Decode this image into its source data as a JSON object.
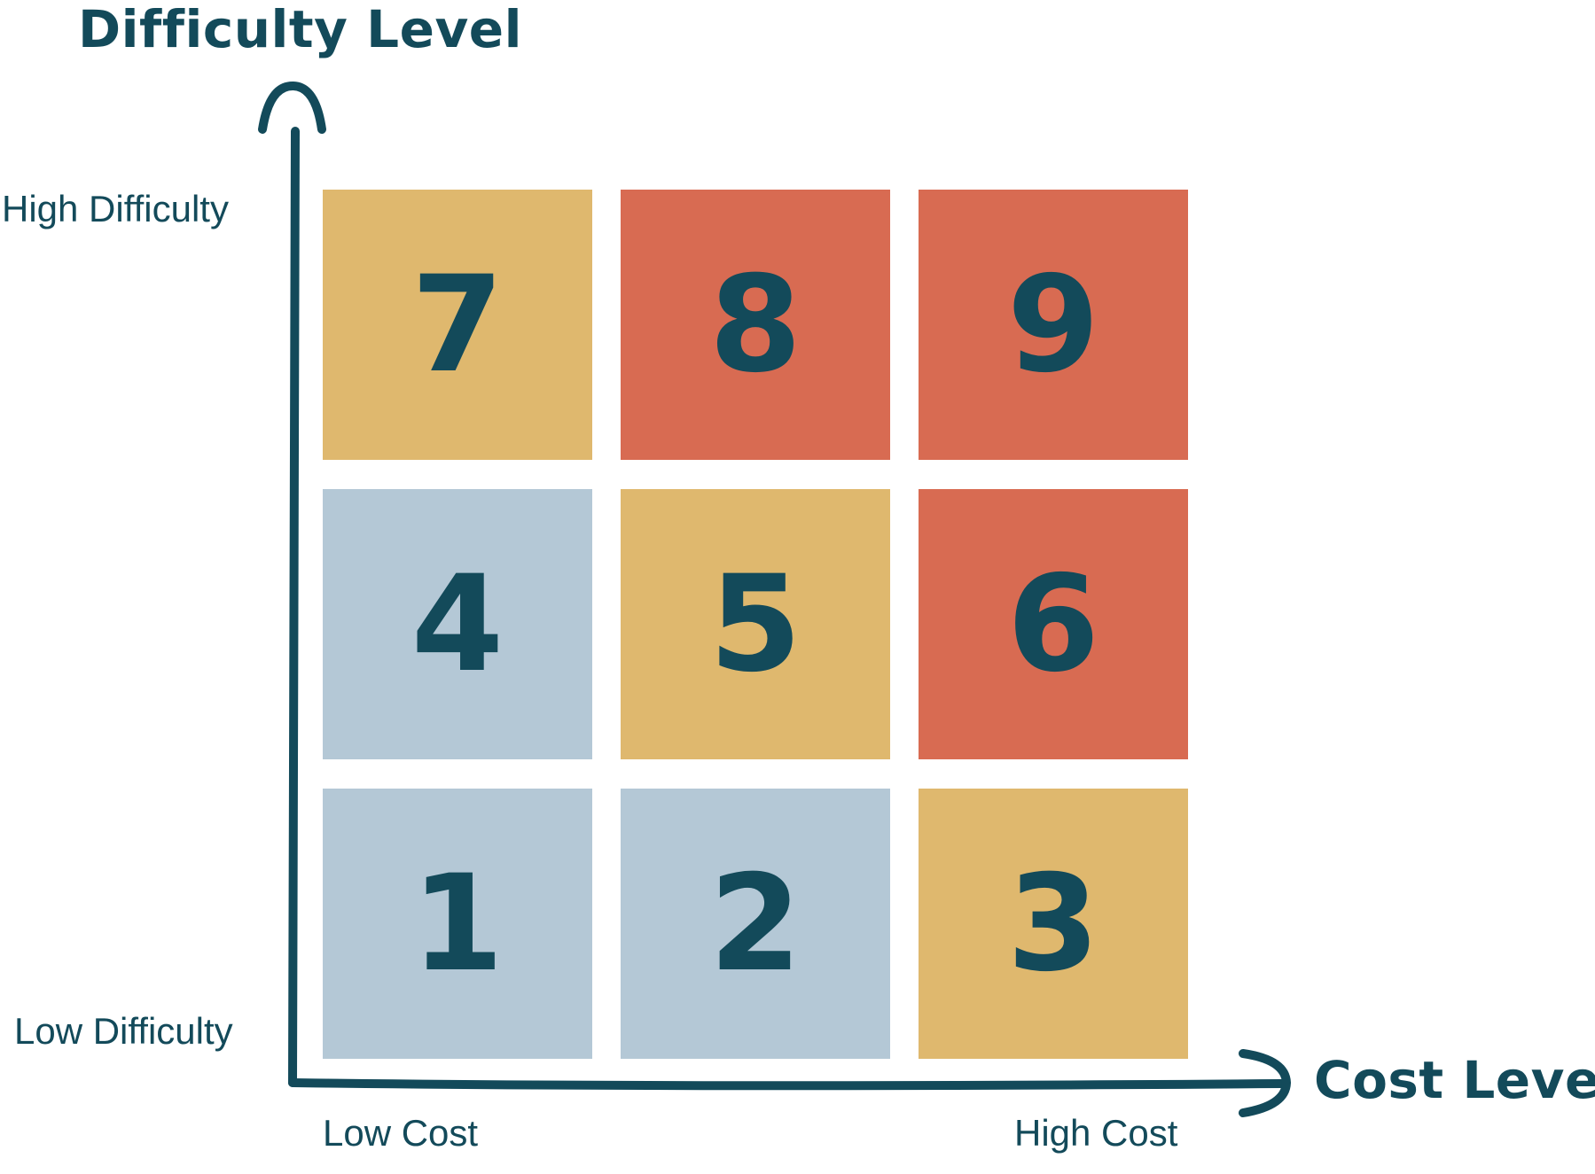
{
  "axis_titles": {
    "y": "Difficulty Level",
    "x": "Cost Level"
  },
  "axis_labels": {
    "y_high": "High Difficulty",
    "y_low": "Low Difficulty",
    "x_low": "Low Cost",
    "x_high": "High Cost"
  },
  "grid": {
    "rows": [
      [
        {
          "number": "7",
          "level": "medium"
        },
        {
          "number": "8",
          "level": "high"
        },
        {
          "number": "9",
          "level": "high"
        }
      ],
      [
        {
          "number": "4",
          "level": "low"
        },
        {
          "number": "5",
          "level": "medium"
        },
        {
          "number": "6",
          "level": "high"
        }
      ],
      [
        {
          "number": "1",
          "level": "low"
        },
        {
          "number": "2",
          "level": "low"
        },
        {
          "number": "3",
          "level": "medium"
        }
      ]
    ]
  },
  "colors": {
    "text_and_axes": "#134a5a",
    "low": "#b4c8d6",
    "medium": "#dfb86e",
    "high": "#d86b52",
    "background": "#ffffff"
  }
}
